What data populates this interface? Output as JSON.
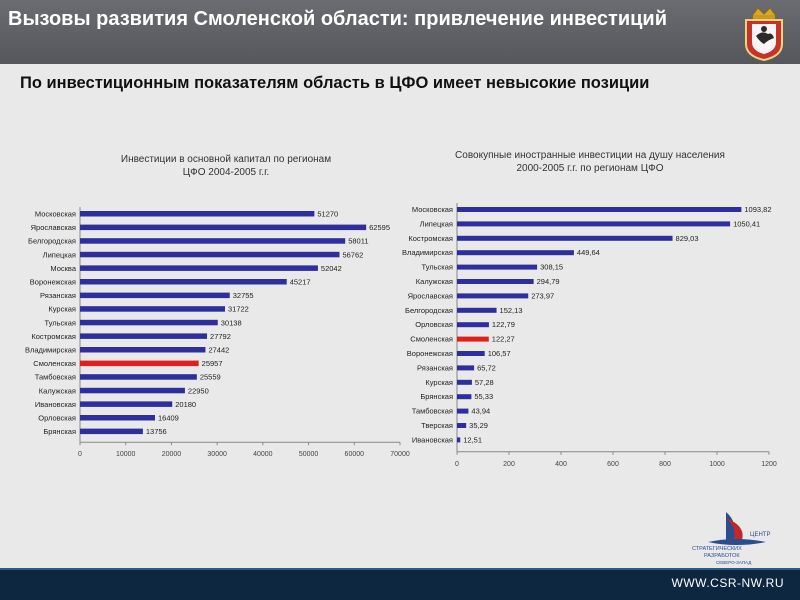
{
  "header": {
    "title": "Вызовы развития Смоленской области: привлечение инвестиций"
  },
  "subtitle": "По инвестиционным показателям область в ЦФО имеет невысокие позиции",
  "footer": {
    "url": "WWW.CSR-NW.RU"
  },
  "logo": {
    "line1": "ЦЕНТР",
    "line2": "СТРАТЕГИЧЕСКИХ",
    "line3": "РАЗРАБОТОК",
    "line4": "СЕВЕРО-ЗАПАД"
  },
  "colors": {
    "bar": "#2e2e9c",
    "highlight": "#e02020",
    "footer": "#0e2740"
  },
  "chart_data": [
    {
      "type": "bar",
      "orientation": "horizontal",
      "title": "Инвестиции в основной капитал по регионам ЦФО 2004-2005 г.г.",
      "categories": [
        "Московская",
        "Ярославская",
        "Белгородская",
        "Липецкая",
        "Москва",
        "Воронежская",
        "Рязанская",
        "Курская",
        "Тульская",
        "Костромская",
        "Владимирская",
        "Смоленская",
        "Тамбовская",
        "Калужская",
        "Ивановская",
        "Орловская",
        "Брянская"
      ],
      "values": [
        51270,
        62595,
        58011,
        56762,
        52042,
        45217,
        32755,
        31722,
        30138,
        27792,
        27442,
        25957,
        25559,
        22950,
        20180,
        16409,
        13756
      ],
      "labels": [
        "51270",
        "62595",
        "58011",
        "56762",
        "52042",
        "45217",
        "32755",
        "31722",
        "30138",
        "27792",
        "27442",
        "25957",
        "25559",
        "22950",
        "20180",
        "16409",
        "13756"
      ],
      "highlight": "Смоленская",
      "xlim": [
        0,
        70000
      ],
      "xticks": [
        "0",
        "10000",
        "20000",
        "30000",
        "40000",
        "50000",
        "60000",
        "70000"
      ]
    },
    {
      "type": "bar",
      "orientation": "horizontal",
      "title": "Совокупные иностранные инвестиции на душу населения 2000-2005 г.г. по регионам ЦФО",
      "categories": [
        "Московская",
        "Липецкая",
        "Костромская",
        "Владимирская",
        "Тульская",
        "Калужская",
        "Ярославская",
        "Белгородская",
        "Орловская",
        "Смоленская",
        "Воронежская",
        "Рязанская",
        "Курская",
        "Брянская",
        "Тамбовская",
        "Тверская",
        "Ивановская"
      ],
      "values": [
        1093.82,
        1050.41,
        829.03,
        449.64,
        308.15,
        294.79,
        273.97,
        152.13,
        122.79,
        122.27,
        106.57,
        65.72,
        57.28,
        55.33,
        43.94,
        35.29,
        12.51
      ],
      "labels": [
        "1093,82",
        "1050,41",
        "829,03",
        "449,64",
        "308,15",
        "294,79",
        "273,97",
        "152,13",
        "122,79",
        "122,27",
        "106,57",
        "65,72",
        "57,28",
        "55,33",
        "43,94",
        "35,29",
        "12,51"
      ],
      "highlight": "Смоленская",
      "xlim": [
        0,
        1200
      ],
      "xticks": [
        "0",
        "200",
        "400",
        "600",
        "800",
        "1000",
        "1200"
      ]
    }
  ]
}
